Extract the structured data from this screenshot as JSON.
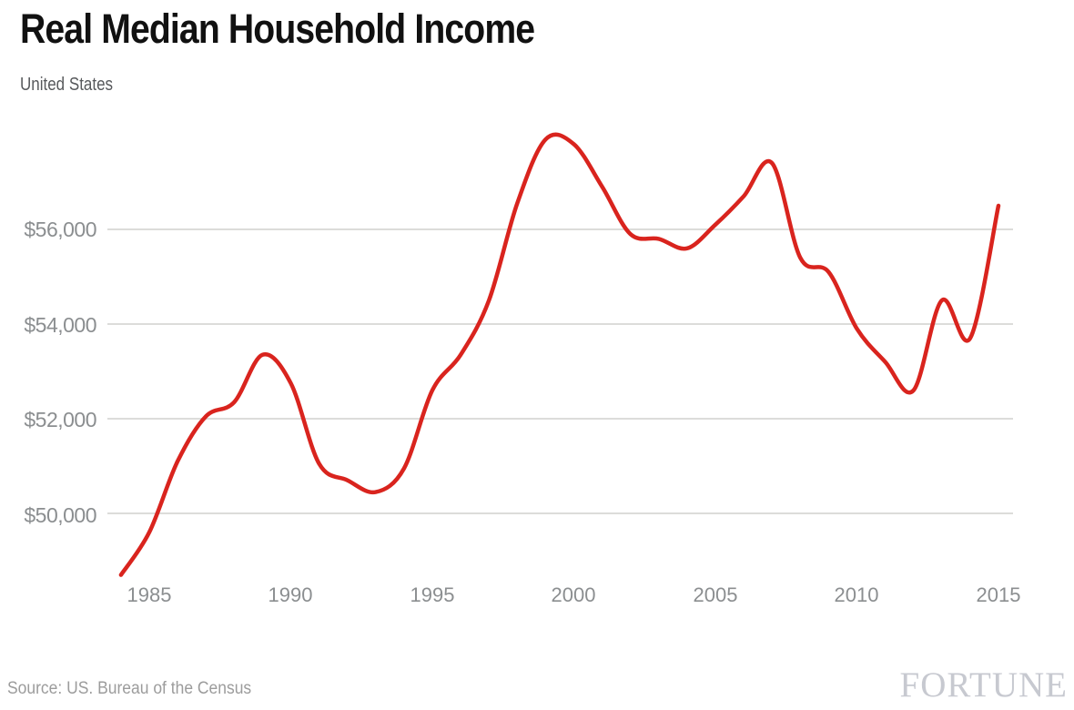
{
  "chart_data": {
    "type": "line",
    "title": "Real Median Household Income",
    "subtitle": "United States",
    "source": "Source: US. Bureau of the Census",
    "branding": "FORTUNE",
    "grid_color": "#dcdcda",
    "text_colors": {
      "title": "#111111",
      "subtitle": "#57595c",
      "axis": "#8b8e90",
      "source": "#9c9c9c",
      "brand": "#c7c9d0"
    },
    "x_axis": {
      "ticks": [
        {
          "label": "1985",
          "year": 1985
        },
        {
          "label": "1990",
          "year": 1990
        },
        {
          "label": "1995",
          "year": 1995
        },
        {
          "label": "2000",
          "year": 2000
        },
        {
          "label": "2005",
          "year": 2005
        },
        {
          "label": "2010",
          "year": 2010
        },
        {
          "label": "2015",
          "year": 2015
        }
      ],
      "range": [
        1984,
        2015
      ]
    },
    "y_axis": {
      "ticks": [
        {
          "label": "$56,000",
          "value": 56000
        },
        {
          "label": "$54,000",
          "value": 54000
        },
        {
          "label": "$52,000",
          "value": 52000
        },
        {
          "label": "$50,000",
          "value": 50000
        }
      ],
      "range_approx": [
        48500,
        58200
      ],
      "grid": true
    },
    "legend": "none",
    "series": [
      {
        "label": "United States",
        "color": "#d9241e",
        "years": [
          1984,
          1985,
          1986,
          1987,
          1988,
          1989,
          1990,
          1991,
          1992,
          1993,
          1994,
          1995,
          1996,
          1997,
          1998,
          1999,
          2000,
          2001,
          2002,
          2003,
          2004,
          2005,
          2006,
          2007,
          2008,
          2009,
          2010,
          2011,
          2012,
          2013,
          2014,
          2015
        ],
        "values": [
          48700,
          49600,
          51100,
          52050,
          52350,
          53350,
          52750,
          51050,
          50700,
          50450,
          50950,
          52600,
          53350,
          54500,
          56550,
          57900,
          57800,
          56900,
          55900,
          55800,
          55600,
          56100,
          56700,
          57400,
          55400,
          55100,
          53900,
          53200,
          52600,
          54500,
          53700,
          56500
        ]
      }
    ]
  }
}
